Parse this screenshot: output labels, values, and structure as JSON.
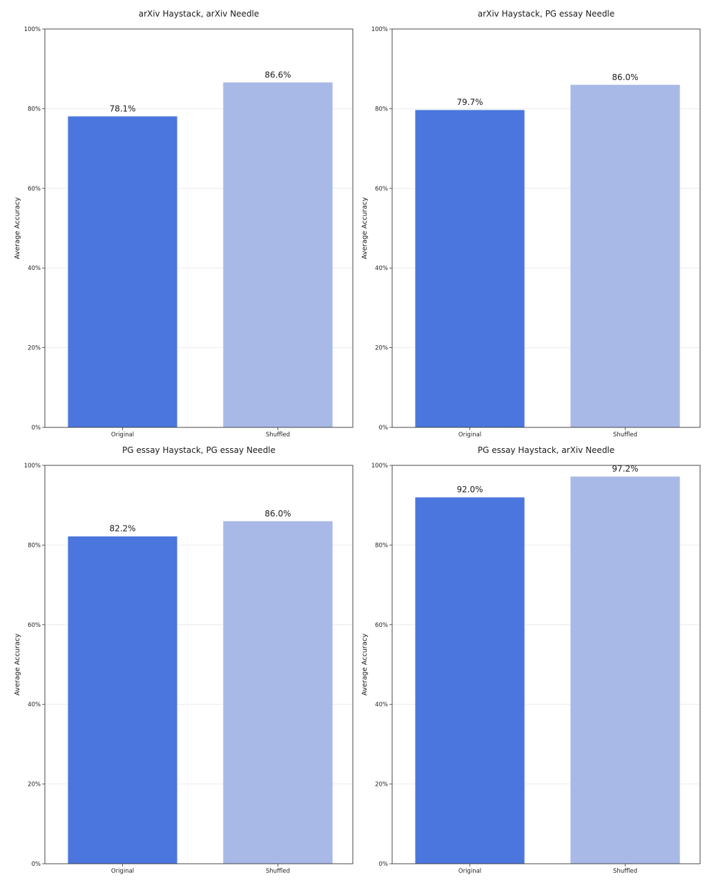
{
  "chart_data": [
    {
      "type": "bar",
      "title": "arXiv Haystack, arXiv Needle",
      "categories": [
        "Original",
        "Shuffled"
      ],
      "values": [
        78.1,
        86.6
      ],
      "data_labels": [
        "78.1%",
        "86.6%"
      ],
      "xlabel": "",
      "ylabel": "Average Accuracy",
      "ylim": [
        0,
        100
      ],
      "yticks": [
        "0%",
        "20%",
        "40%",
        "60%",
        "80%",
        "100%"
      ],
      "grid": true,
      "colors": [
        "#4a76dd",
        "#a8b9e8"
      ]
    },
    {
      "type": "bar",
      "title": "arXiv Haystack, PG essay Needle",
      "categories": [
        "Original",
        "Shuffled"
      ],
      "values": [
        79.7,
        86.0
      ],
      "data_labels": [
        "79.7%",
        "86.0%"
      ],
      "xlabel": "",
      "ylabel": "Average Accuracy",
      "ylim": [
        0,
        100
      ],
      "yticks": [
        "0%",
        "20%",
        "40%",
        "60%",
        "80%",
        "100%"
      ],
      "grid": true,
      "colors": [
        "#4a76dd",
        "#a8b9e8"
      ]
    },
    {
      "type": "bar",
      "title": "PG essay Haystack, PG essay Needle",
      "categories": [
        "Original",
        "Shuffled"
      ],
      "values": [
        82.2,
        86.0
      ],
      "data_labels": [
        "82.2%",
        "86.0%"
      ],
      "xlabel": "",
      "ylabel": "Average Accuracy",
      "ylim": [
        0,
        100
      ],
      "yticks": [
        "0%",
        "20%",
        "40%",
        "60%",
        "80%",
        "100%"
      ],
      "grid": true,
      "colors": [
        "#4a76dd",
        "#a8b9e8"
      ]
    },
    {
      "type": "bar",
      "title": "PG essay Haystack, arXiv Needle",
      "categories": [
        "Original",
        "Shuffled"
      ],
      "values": [
        92.0,
        97.2
      ],
      "data_labels": [
        "92.0%",
        "97.2%"
      ],
      "xlabel": "",
      "ylabel": "Average Accuracy",
      "ylim": [
        0,
        100
      ],
      "yticks": [
        "0%",
        "20%",
        "40%",
        "60%",
        "80%",
        "100%"
      ],
      "grid": true,
      "colors": [
        "#4a76dd",
        "#a8b9e8"
      ]
    }
  ]
}
